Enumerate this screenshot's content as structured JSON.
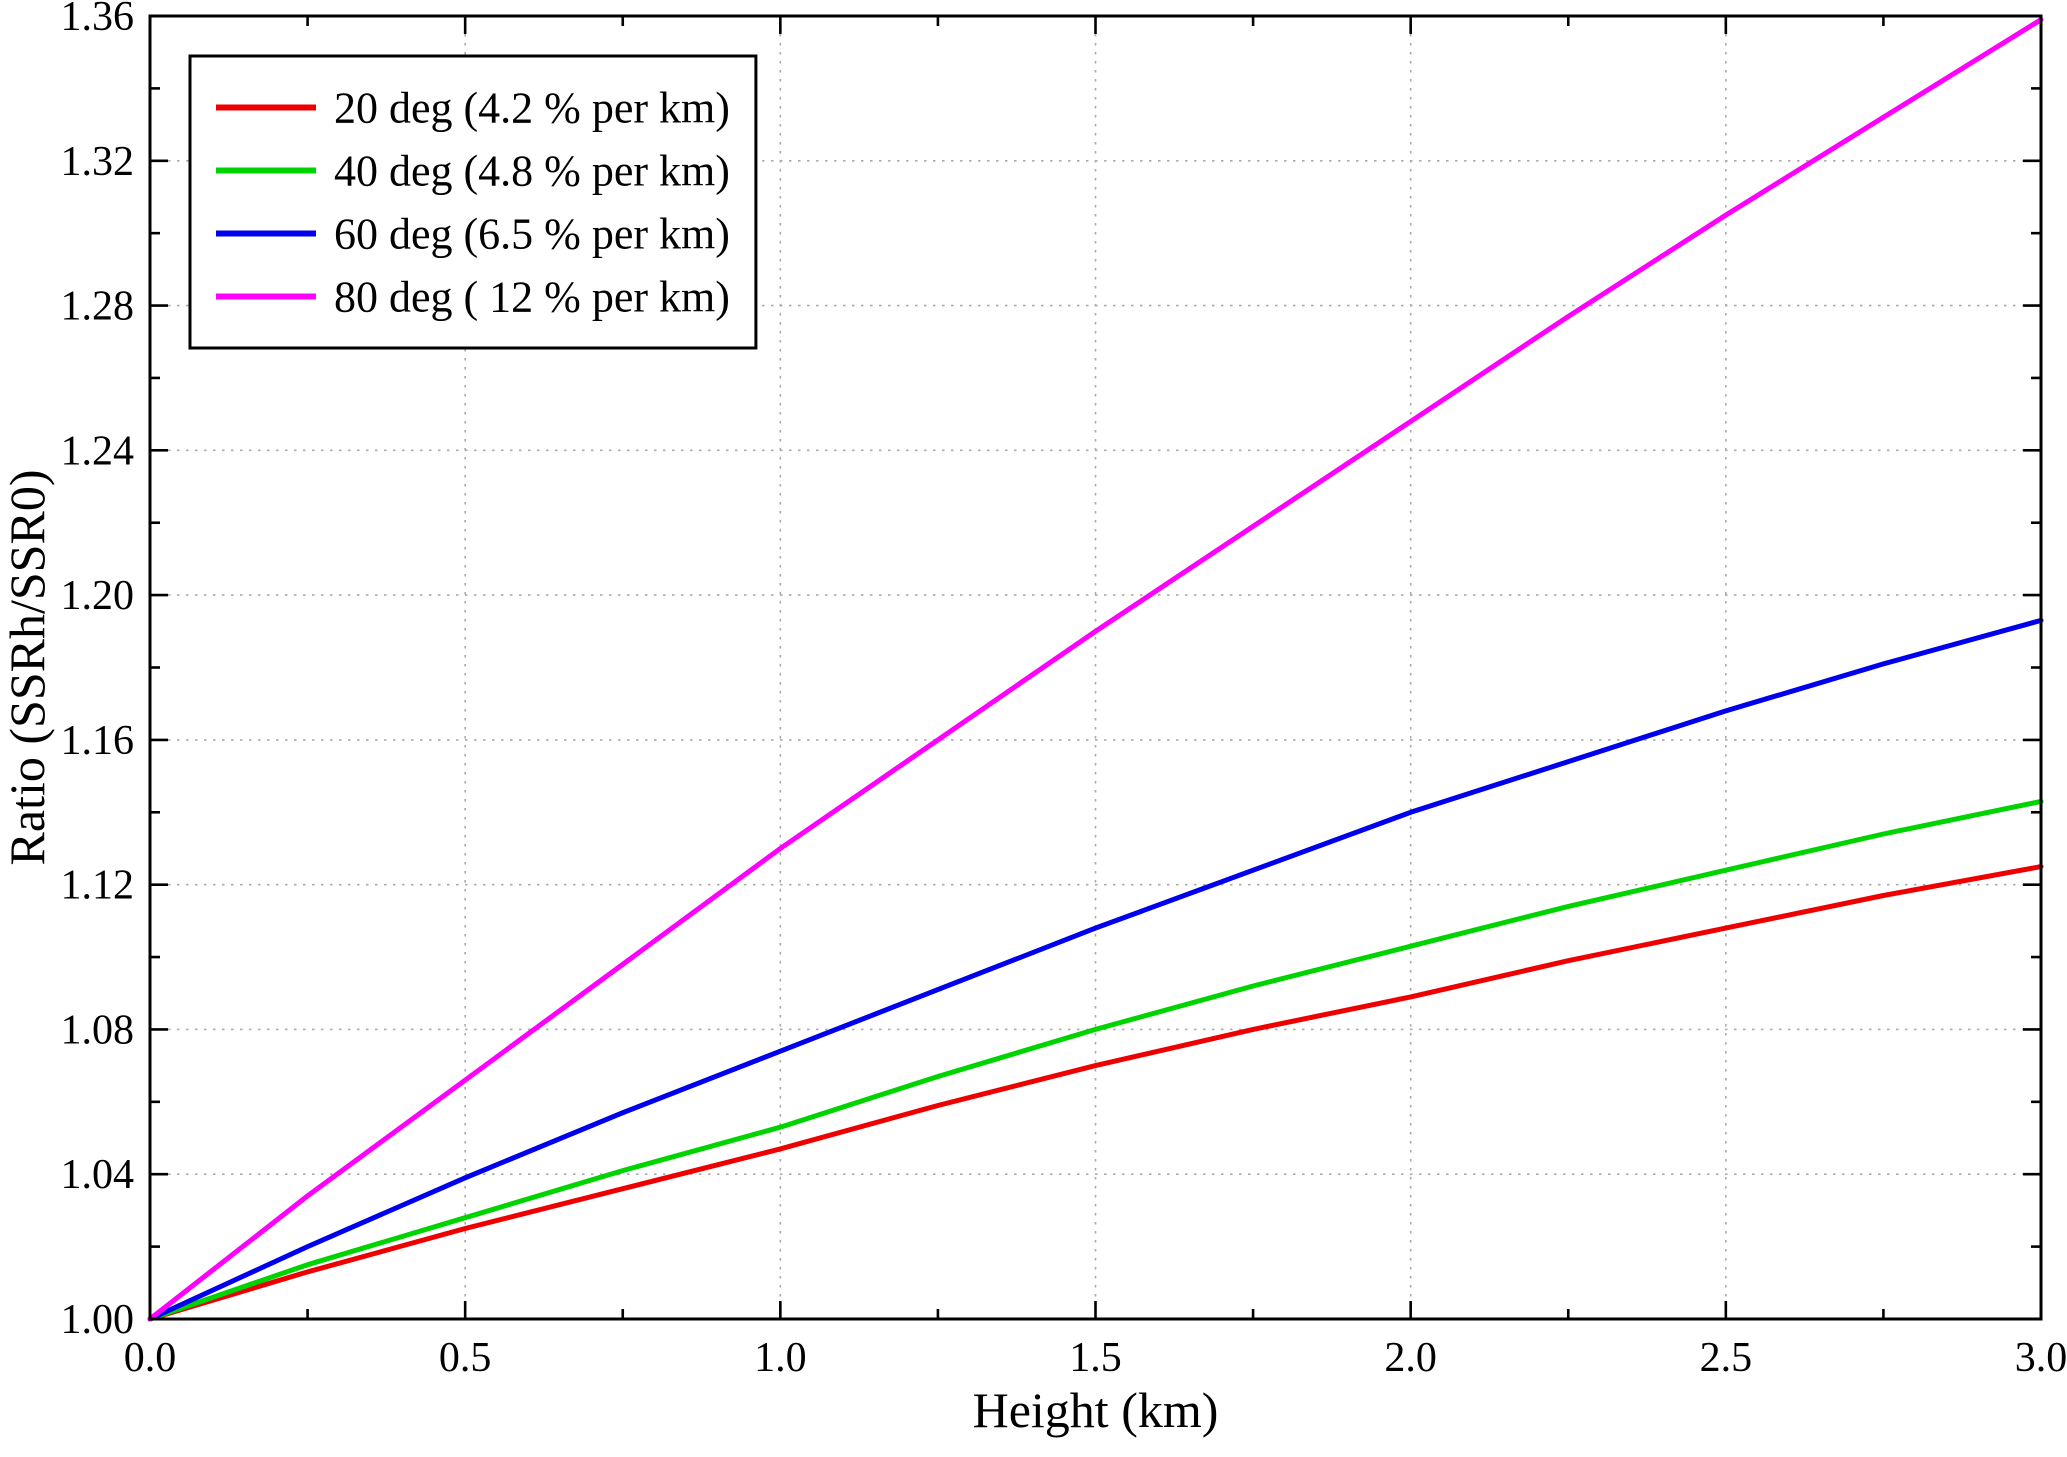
{
  "chart_data": {
    "type": "line",
    "title": "",
    "xlabel": "Height (km)",
    "ylabel": "Ratio (SSRh/SSR0)",
    "xlim": [
      0.0,
      3.0
    ],
    "ylim": [
      1.0,
      1.36
    ],
    "x_major_step": 0.5,
    "x_minor_step": 0.25,
    "y_major_step": 0.04,
    "y_minor_step": 0.02,
    "x_tick_labels": [
      "0.0",
      "0.5",
      "1.0",
      "1.5",
      "2.0",
      "2.5",
      "3.0"
    ],
    "y_tick_labels": [
      "1.00",
      "1.04",
      "1.08",
      "1.12",
      "1.16",
      "1.20",
      "1.24",
      "1.28",
      "1.32",
      "1.36"
    ],
    "grid": true,
    "grid_color": "#aaaaaa",
    "legend_position": "top-left",
    "x": [
      0.0,
      0.25,
      0.5,
      0.75,
      1.0,
      1.25,
      1.5,
      1.75,
      2.0,
      2.25,
      2.5,
      2.75,
      3.0
    ],
    "series": [
      {
        "name": "20 deg (4.2 % per km)",
        "color": "#ee0000",
        "values": [
          1.0,
          1.013,
          1.025,
          1.036,
          1.047,
          1.059,
          1.07,
          1.08,
          1.089,
          1.099,
          1.108,
          1.117,
          1.125
        ]
      },
      {
        "name": "40 deg (4.8 % per km)",
        "color": "#00d400",
        "values": [
          1.0,
          1.015,
          1.028,
          1.041,
          1.053,
          1.067,
          1.08,
          1.092,
          1.103,
          1.114,
          1.124,
          1.134,
          1.143
        ]
      },
      {
        "name": "60 deg (6.5 % per km)",
        "color": "#0000ee",
        "values": [
          1.0,
          1.02,
          1.039,
          1.057,
          1.074,
          1.091,
          1.108,
          1.124,
          1.14,
          1.154,
          1.168,
          1.181,
          1.193
        ]
      },
      {
        "name": "80 deg ( 12 % per km)",
        "color": "#ff00ff",
        "values": [
          1.0,
          1.034,
          1.066,
          1.098,
          1.13,
          1.16,
          1.19,
          1.219,
          1.248,
          1.277,
          1.305,
          1.332,
          1.359
        ]
      }
    ]
  }
}
